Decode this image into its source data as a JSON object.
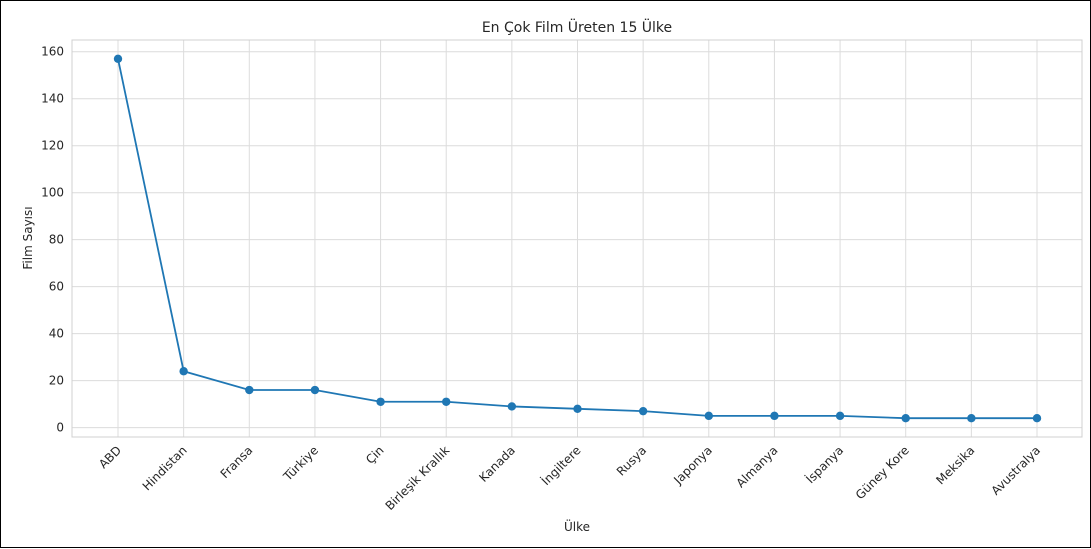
{
  "chart_data": {
    "type": "line",
    "title": "En Çok Film Üreten 15 Ülke",
    "xlabel": "Ülke",
    "ylabel": "Film Sayısı",
    "categories": [
      "ABD",
      "Hindistan",
      "Fransa",
      "Türkiye",
      "Çin",
      "Birleşik Krallık",
      "Kanada",
      "İngiltere",
      "Rusya",
      "Japonya",
      "Almanya",
      "İspanya",
      "Güney Kore",
      "Meksika",
      "Avustralya"
    ],
    "values": [
      157,
      24,
      16,
      16,
      11,
      11,
      9,
      8,
      7,
      5,
      5,
      5,
      4,
      4,
      4
    ],
    "ylim": [
      -4,
      165
    ],
    "yticks": [
      0,
      20,
      40,
      60,
      80,
      100,
      120,
      140,
      160
    ],
    "grid": true,
    "color": "#1f77b4"
  }
}
